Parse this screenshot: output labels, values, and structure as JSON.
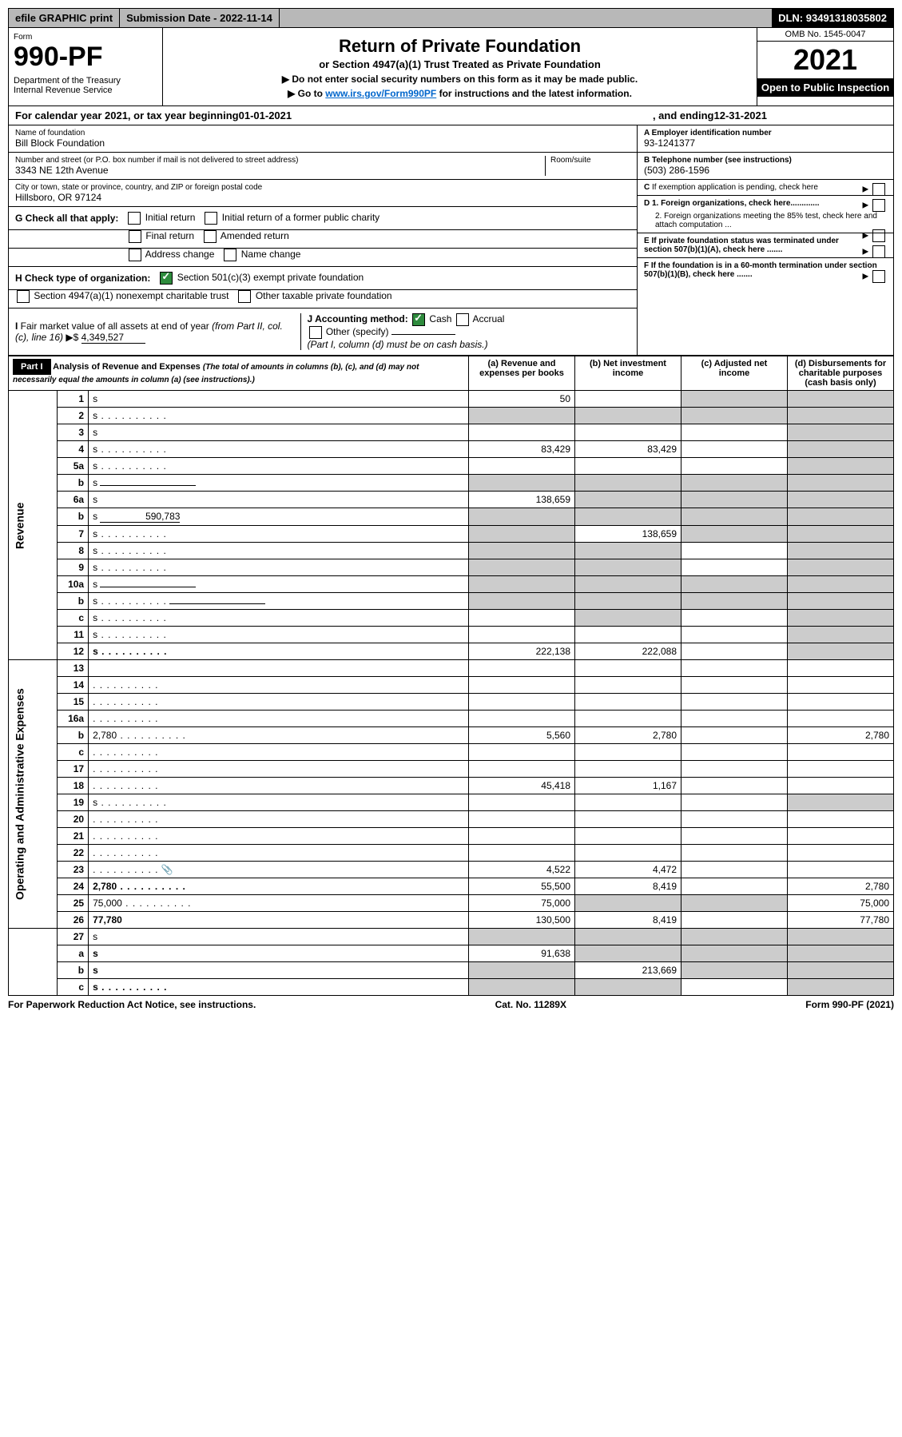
{
  "topbar": {
    "efile": "efile GRAPHIC print",
    "submission_label": "Submission Date - ",
    "submission_date": "2022-11-14",
    "dln_label": "DLN: ",
    "dln": "93491318035802"
  },
  "header": {
    "form_label": "Form",
    "form_no": "990-PF",
    "dept": "Department of the Treasury\nInternal Revenue Service",
    "title": "Return of Private Foundation",
    "subtitle": "or Section 4947(a)(1) Trust Treated as Private Foundation",
    "instr1": "▶ Do not enter social security numbers on this form as it may be made public.",
    "instr2_pre": "▶ Go to ",
    "instr2_link": "www.irs.gov/Form990PF",
    "instr2_post": " for instructions and the latest information.",
    "omb": "OMB No. 1545-0047",
    "year": "2021",
    "open": "Open to Public Inspection"
  },
  "calyear": {
    "prefix": "For calendar year 2021, or tax year beginning ",
    "begin": "01-01-2021",
    "middle": ", and ending ",
    "end": "12-31-2021"
  },
  "entity": {
    "name_label": "Name of foundation",
    "name": "Bill Block Foundation",
    "addr_label": "Number and street (or P.O. box number if mail is not delivered to street address)",
    "addr": "3343 NE 12th Avenue",
    "room_label": "Room/suite",
    "city_label": "City or town, state or province, country, and ZIP or foreign postal code",
    "city": "Hillsboro, OR  97124",
    "ein_label": "A Employer identification number",
    "ein": "93-1241377",
    "tel_label": "B Telephone number (see instructions)",
    "tel": "(503) 286-1596",
    "c_label": "C If exemption application is pending, check here",
    "d1": "D 1. Foreign organizations, check here.............",
    "d2": "2. Foreign organizations meeting the 85% test, check here and attach computation ...",
    "e": "E  If private foundation status was terminated under section 507(b)(1)(A), check here .......",
    "f": "F  If the foundation is in a 60-month termination under section 507(b)(1)(B), check here ......."
  },
  "g": {
    "label": "G Check all that apply:",
    "initial": "Initial return",
    "initial_former": "Initial return of a former public charity",
    "final": "Final return",
    "amended": "Amended return",
    "addr_change": "Address change",
    "name_change": "Name change"
  },
  "h": {
    "label": "H Check type of organization:",
    "sec501": "Section 501(c)(3) exempt private foundation",
    "sec4947": "Section 4947(a)(1) nonexempt charitable trust",
    "other_tax": "Other taxable private foundation"
  },
  "i": {
    "label": "I Fair market value of all assets at end of year (from Part II, col. (c), line 16) ▶$",
    "value": "4,349,527"
  },
  "j": {
    "label": "J Accounting method:",
    "cash": "Cash",
    "accrual": "Accrual",
    "other": "Other (specify)",
    "note": "(Part I, column (d) must be on cash basis.)"
  },
  "part1": {
    "bar": "Part I",
    "title": "Analysis of Revenue and Expenses",
    "note": "(The total of amounts in columns (b), (c), and (d) may not necessarily equal the amounts in column (a) (see instructions).)",
    "col_a": "(a)   Revenue and expenses per books",
    "col_b": "(b)   Net investment income",
    "col_c": "(c)   Adjusted net income",
    "col_d": "(d)   Disbursements for charitable purposes (cash basis only)"
  },
  "vlabels": {
    "revenue": "Revenue",
    "expenses": "Operating and Administrative Expenses"
  },
  "rows": [
    {
      "n": "1",
      "d": "s",
      "a": "50",
      "b": "",
      "c": "s"
    },
    {
      "n": "2",
      "d": "s",
      "dots": true,
      "a": "s",
      "b": "s",
      "c": "s"
    },
    {
      "n": "3",
      "d": "s",
      "a": "",
      "b": "",
      "c": ""
    },
    {
      "n": "4",
      "d": "s",
      "dots": true,
      "a": "83,429",
      "b": "83,429",
      "c": ""
    },
    {
      "n": "5a",
      "d": "s",
      "dots": true,
      "a": "",
      "b": "",
      "c": ""
    },
    {
      "n": "b",
      "d": "s",
      "under": true,
      "a": "s",
      "b": "s",
      "c": "s"
    },
    {
      "n": "6a",
      "d": "s",
      "a": "138,659",
      "b": "s",
      "c": "s"
    },
    {
      "n": "b",
      "d": "s",
      "inline": "590,783",
      "a": "s",
      "b": "s",
      "c": "s"
    },
    {
      "n": "7",
      "d": "s",
      "dots": true,
      "a": "s",
      "b": "138,659",
      "c": "s"
    },
    {
      "n": "8",
      "d": "s",
      "dots": true,
      "a": "s",
      "b": "s",
      "c": ""
    },
    {
      "n": "9",
      "d": "s",
      "dots": true,
      "a": "s",
      "b": "s",
      "c": ""
    },
    {
      "n": "10a",
      "d": "s",
      "under": true,
      "a": "s",
      "b": "s",
      "c": "s"
    },
    {
      "n": "b",
      "d": "s",
      "dots": true,
      "under": true,
      "a": "s",
      "b": "s",
      "c": "s"
    },
    {
      "n": "c",
      "d": "s",
      "dots": true,
      "a": "",
      "b": "s",
      "c": ""
    },
    {
      "n": "11",
      "d": "s",
      "dots": true,
      "a": "",
      "b": "",
      "c": ""
    },
    {
      "n": "12",
      "d": "s",
      "dots": true,
      "bold": true,
      "a": "222,138",
      "b": "222,088",
      "c": ""
    }
  ],
  "exp_rows": [
    {
      "n": "13",
      "d": "",
      "a": "",
      "b": "",
      "c": ""
    },
    {
      "n": "14",
      "d": "",
      "dots": true,
      "a": "",
      "b": "",
      "c": ""
    },
    {
      "n": "15",
      "d": "",
      "dots": true,
      "a": "",
      "b": "",
      "c": ""
    },
    {
      "n": "16a",
      "d": "",
      "dots": true,
      "a": "",
      "b": "",
      "c": ""
    },
    {
      "n": "b",
      "d": "2,780",
      "dots": true,
      "a": "5,560",
      "b": "2,780",
      "c": ""
    },
    {
      "n": "c",
      "d": "",
      "dots": true,
      "a": "",
      "b": "",
      "c": ""
    },
    {
      "n": "17",
      "d": "",
      "dots": true,
      "a": "",
      "b": "",
      "c": ""
    },
    {
      "n": "18",
      "d": "",
      "dots": true,
      "a": "45,418",
      "b": "1,167",
      "c": ""
    },
    {
      "n": "19",
      "d": "s",
      "dots": true,
      "a": "",
      "b": "",
      "c": ""
    },
    {
      "n": "20",
      "d": "",
      "dots": true,
      "a": "",
      "b": "",
      "c": ""
    },
    {
      "n": "21",
      "d": "",
      "dots": true,
      "a": "",
      "b": "",
      "c": ""
    },
    {
      "n": "22",
      "d": "",
      "dots": true,
      "a": "",
      "b": "",
      "c": ""
    },
    {
      "n": "23",
      "d": "",
      "dots": true,
      "icon": true,
      "a": "4,522",
      "b": "4,472",
      "c": ""
    },
    {
      "n": "24",
      "d": "2,780",
      "dots": true,
      "bold": true,
      "a": "55,500",
      "b": "8,419",
      "c": ""
    },
    {
      "n": "25",
      "d": "75,000",
      "dots": true,
      "a": "75,000",
      "b": "s",
      "c": "s"
    },
    {
      "n": "26",
      "d": "77,780",
      "bold": true,
      "a": "130,500",
      "b": "8,419",
      "c": ""
    }
  ],
  "net_rows": [
    {
      "n": "27",
      "d": "s",
      "a": "s",
      "b": "s",
      "c": "s"
    },
    {
      "n": "a",
      "d": "s",
      "bold": true,
      "a": "91,638",
      "b": "s",
      "c": "s"
    },
    {
      "n": "b",
      "d": "s",
      "bold": true,
      "a": "s",
      "b": "213,669",
      "c": "s"
    },
    {
      "n": "c",
      "d": "s",
      "dots": true,
      "bold": true,
      "a": "s",
      "b": "s",
      "c": ""
    }
  ],
  "footer": {
    "left": "For Paperwork Reduction Act Notice, see instructions.",
    "mid": "Cat. No. 11289X",
    "right": "Form 990-PF (2021)"
  }
}
